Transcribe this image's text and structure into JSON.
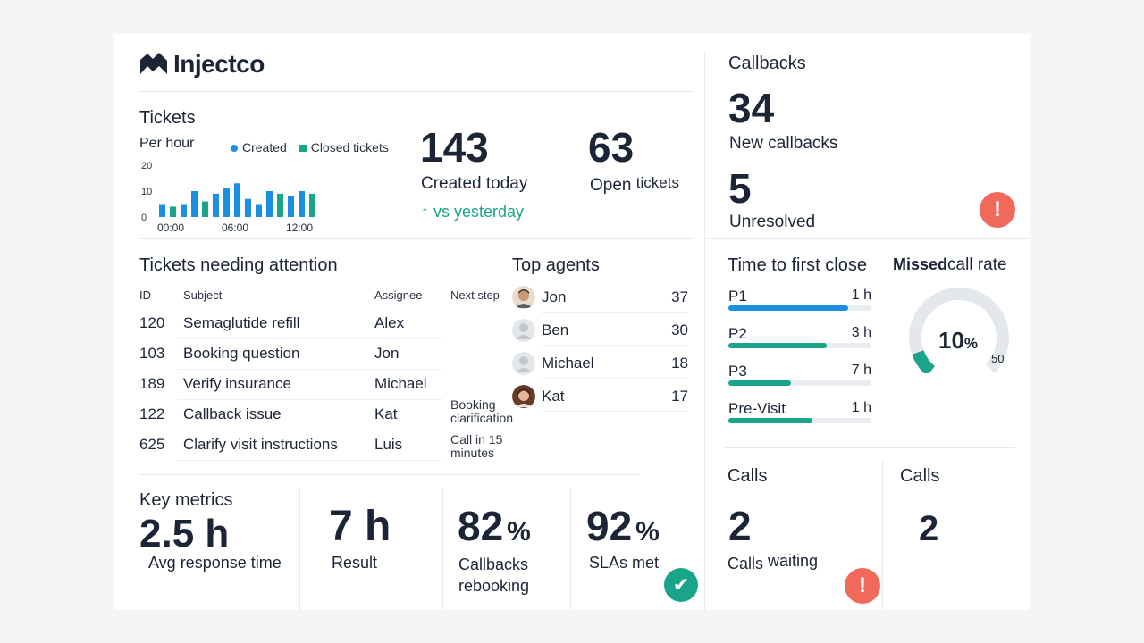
{
  "brand": {
    "name": "Injectco"
  },
  "tickets": {
    "title": "Tickets",
    "subtitle": "Per hour",
    "legend_created": "Created",
    "legend_closed": "Closed tickets",
    "created_count": "143",
    "created_label": "Created today",
    "trend_label": "↑ vs yesterday",
    "open_count": "63",
    "open_label_a": "Open",
    "open_label_b": "tickets"
  },
  "chart_data": {
    "type": "bar",
    "title": "Tickets",
    "subtitle": "Per hour",
    "ylim": [
      0,
      20
    ],
    "yticks": [
      "20",
      "10",
      "0"
    ],
    "xticks": [
      "00:00",
      "06:00",
      "12:00"
    ],
    "series": [
      {
        "name": "Created",
        "color": "#1b8fe0",
        "values": [
          5,
          3,
          5,
          10,
          0,
          9,
          11,
          13,
          7,
          5,
          10,
          0,
          8,
          10,
          0
        ]
      },
      {
        "name": "Closed tickets",
        "color": "#1aa58a",
        "values": [
          0,
          4,
          0,
          0,
          6,
          0,
          0,
          0,
          0,
          0,
          0,
          9,
          0,
          0,
          9
        ]
      }
    ]
  },
  "callbacks": {
    "title": "Callbacks",
    "new_count": "34",
    "new_label": "New callbacks",
    "unresolved_count": "5",
    "unresolved_label": "Unresolved",
    "alert_glyph": "!"
  },
  "attention": {
    "title": "Tickets needing attention",
    "headers": {
      "id": "ID",
      "subject": "Subject",
      "assignee": "Assignee",
      "next": "Next step"
    },
    "rows": [
      {
        "id": "120",
        "subject": "Semaglutide refill",
        "assignee": "Alex"
      },
      {
        "id": "103",
        "subject": "Booking question",
        "assignee": "Jon"
      },
      {
        "id": "189",
        "subject": "Verify insurance",
        "assignee": "Michael"
      },
      {
        "id": "122",
        "subject": "Callback issue",
        "assignee": "Kat"
      },
      {
        "id": "625",
        "subject": "Clarify visit instructions",
        "assignee": "Luis"
      }
    ],
    "next_steps": [
      "Booking clarification",
      "Call in 15 minutes"
    ]
  },
  "agents": {
    "title": "Top agents",
    "list": [
      {
        "name": "Jon",
        "count": "37",
        "avatar": "man-avatar"
      },
      {
        "name": "Ben",
        "count": "30",
        "avatar": "placeholder-avatar"
      },
      {
        "name": "Michael",
        "count": "18",
        "avatar": "placeholder-avatar"
      },
      {
        "name": "Kat",
        "count": "17",
        "avatar": "woman-avatar"
      }
    ]
  },
  "first_close": {
    "title": "Time to first close",
    "items": [
      {
        "label": "P1",
        "value": "1 h",
        "fill": 0.84,
        "color": "#1b8fe0"
      },
      {
        "label": "P2",
        "value": "3 h",
        "fill": 0.69,
        "color": "#1aa58a"
      },
      {
        "label": "P3",
        "value": "7 h",
        "fill": 0.44,
        "color": "#1aa58a"
      },
      {
        "label": "Pre-Visit",
        "value": "1 h",
        "fill": 0.59,
        "color": "#1aa58a"
      }
    ]
  },
  "missed": {
    "title_a": "Missed",
    "title_b": "call rate",
    "value": "10",
    "unit": "%",
    "max_label": "50",
    "percent": 10,
    "color": "#1aa58a"
  },
  "key_metrics": {
    "title": "Key metrics",
    "avg_value": "2.5 h",
    "avg_label": "Avg response time",
    "result_value": "7 h",
    "result_label": "Result",
    "callbacks_value": "82",
    "callbacks_unit": "%",
    "callbacks_label_1": "Callbacks",
    "callbacks_label_2": "rebooking",
    "sla_value": "92",
    "sla_unit": "%",
    "sla_label": "SLAs met",
    "check_glyph": "✔"
  },
  "calls": {
    "title_1": "Calls",
    "waiting_count": "2",
    "waiting_label_a": "Calls",
    "waiting_label_b": "waiting",
    "title_2": "Calls",
    "count_2": "2",
    "alert_glyph": "!"
  }
}
